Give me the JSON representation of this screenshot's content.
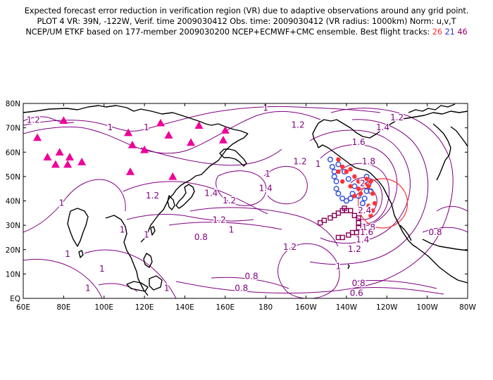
{
  "header": {
    "line1": "Expected forecast error reduction in verification region (VR) due to adaptive observations around any grid point.",
    "line2": "PLOT 4 VR: 39N, -122W, Verif. time 2009030412 Obs. time: 2009030412 (VR radius: 1000km) Norm: u,v,T",
    "line3_prefix": "NCEP/UM ETKF based on 177-member 2009030200 NCEP+ECMWF+CMC ensemble. Best flight tracks:",
    "track_a": "26",
    "track_b": "21",
    "track_c": "46"
  },
  "map": {
    "lon_labels": [
      "60E",
      "80E",
      "100E",
      "120E",
      "140E",
      "160E",
      "180",
      "160W",
      "140W",
      "120W",
      "100W",
      "80W"
    ],
    "lat_labels": [
      "EQ",
      "10N",
      "20N",
      "30N",
      "40N",
      "50N",
      "60N",
      "70N",
      "80N"
    ],
    "contour_labels": [
      {
        "text": "1.2",
        "lon": 65,
        "lat": 72
      },
      {
        "text": "1",
        "lon": 103,
        "lat": 69
      },
      {
        "text": "1",
        "lon": 121,
        "lat": 69
      },
      {
        "text": "1",
        "lon": 180,
        "lat": 77
      },
      {
        "text": "1.2",
        "lon": 196,
        "lat": 70
      },
      {
        "text": "1.2",
        "lon": 197,
        "lat": 55
      },
      {
        "text": "1.4",
        "lon": 238,
        "lat": 69
      },
      {
        "text": "1.2",
        "lon": 245,
        "lat": 73
      },
      {
        "text": "1.6",
        "lon": 226,
        "lat": 63
      },
      {
        "text": "1.8",
        "lon": 231,
        "lat": 55
      },
      {
        "text": "2",
        "lon": 228,
        "lat": 46
      },
      {
        "text": "2.4",
        "lon": 229,
        "lat": 35
      },
      {
        "text": "1.8",
        "lon": 231,
        "lat": 28
      },
      {
        "text": "1.6",
        "lon": 230,
        "lat": 26
      },
      {
        "text": "1.4",
        "lon": 228,
        "lat": 23
      },
      {
        "text": "1.2",
        "lon": 224,
        "lat": 19
      },
      {
        "text": "1",
        "lon": 206,
        "lat": 54
      },
      {
        "text": "1",
        "lon": 181,
        "lat": 50
      },
      {
        "text": "1.4",
        "lon": 180,
        "lat": 44
      },
      {
        "text": "1.4",
        "lon": 153,
        "lat": 42
      },
      {
        "text": "1.2",
        "lon": 162,
        "lat": 39
      },
      {
        "text": "1.2",
        "lon": 124,
        "lat": 41
      },
      {
        "text": "1",
        "lon": 79,
        "lat": 38
      },
      {
        "text": "1.2",
        "lon": 157,
        "lat": 31
      },
      {
        "text": "1",
        "lon": 163,
        "lat": 27
      },
      {
        "text": "0.8",
        "lon": 148,
        "lat": 24
      },
      {
        "text": "1",
        "lon": 121,
        "lat": 25
      },
      {
        "text": "1.2",
        "lon": 192,
        "lat": 20
      },
      {
        "text": "1",
        "lon": 216,
        "lat": 12
      },
      {
        "text": "0.8",
        "lon": 264,
        "lat": 26
      },
      {
        "text": "0.8",
        "lon": 173,
        "lat": 8
      },
      {
        "text": "0.8",
        "lon": 168,
        "lat": 3
      },
      {
        "text": "0.8",
        "lon": 226,
        "lat": 5
      },
      {
        "text": "0.6",
        "lon": 225,
        "lat": 1
      },
      {
        "text": "1",
        "lon": 131,
        "lat": 3
      },
      {
        "text": "1",
        "lon": 99,
        "lat": 11
      },
      {
        "text": "1",
        "lon": 92,
        "lat": 3
      },
      {
        "text": "1",
        "lon": 82,
        "lat": 17
      },
      {
        "text": "1",
        "lon": 109,
        "lat": 27
      }
    ],
    "triangles": [
      {
        "lon": 67,
        "lat": 66
      },
      {
        "lon": 72,
        "lat": 58
      },
      {
        "lon": 76,
        "lat": 55
      },
      {
        "lon": 78,
        "lat": 60
      },
      {
        "lon": 80,
        "lat": 73
      },
      {
        "lon": 82,
        "lat": 55
      },
      {
        "lon": 83,
        "lat": 58
      },
      {
        "lon": 89,
        "lat": 56
      },
      {
        "lon": 112,
        "lat": 68
      },
      {
        "lon": 114,
        "lat": 63
      },
      {
        "lon": 113,
        "lat": 52
      },
      {
        "lon": 120,
        "lat": 61
      },
      {
        "lon": 128,
        "lat": 72
      },
      {
        "lon": 132,
        "lat": 67
      },
      {
        "lon": 134,
        "lat": 50
      },
      {
        "lon": 143,
        "lat": 64
      },
      {
        "lon": 147,
        "lat": 71
      },
      {
        "lon": 159,
        "lat": 65
      },
      {
        "lon": 160,
        "lat": 69
      }
    ],
    "circles": [
      {
        "lon": 212,
        "lat": 57
      },
      {
        "lon": 213,
        "lat": 54
      },
      {
        "lon": 214,
        "lat": 52
      },
      {
        "lon": 214,
        "lat": 50
      },
      {
        "lon": 215,
        "lat": 48
      },
      {
        "lon": 215,
        "lat": 45
      },
      {
        "lon": 216,
        "lat": 43
      },
      {
        "lon": 218,
        "lat": 41
      },
      {
        "lon": 220,
        "lat": 40
      },
      {
        "lon": 222,
        "lat": 41
      },
      {
        "lon": 223,
        "lat": 43
      },
      {
        "lon": 226,
        "lat": 42
      },
      {
        "lon": 228,
        "lat": 39
      },
      {
        "lon": 229,
        "lat": 41
      },
      {
        "lon": 230,
        "lat": 44
      },
      {
        "lon": 231,
        "lat": 47
      },
      {
        "lon": 230,
        "lat": 50
      },
      {
        "lon": 232,
        "lat": 44
      },
      {
        "lon": 216,
        "lat": 55
      },
      {
        "lon": 219,
        "lat": 52
      },
      {
        "lon": 221,
        "lat": 49
      },
      {
        "lon": 224,
        "lat": 46
      }
    ],
    "dots": [
      {
        "lon": 216,
        "lat": 57
      },
      {
        "lon": 216,
        "lat": 52
      },
      {
        "lon": 218,
        "lat": 54
      },
      {
        "lon": 220,
        "lat": 52
      },
      {
        "lon": 218,
        "lat": 48
      },
      {
        "lon": 222,
        "lat": 53
      },
      {
        "lon": 224,
        "lat": 50
      },
      {
        "lon": 222,
        "lat": 46
      },
      {
        "lon": 226,
        "lat": 48
      },
      {
        "lon": 226,
        "lat": 45
      },
      {
        "lon": 224,
        "lat": 42
      },
      {
        "lon": 227,
        "lat": 43
      },
      {
        "lon": 229,
        "lat": 47
      },
      {
        "lon": 230,
        "lat": 49
      },
      {
        "lon": 232,
        "lat": 48
      },
      {
        "lon": 231,
        "lat": 46
      },
      {
        "lon": 233,
        "lat": 43
      },
      {
        "lon": 234,
        "lat": 39
      },
      {
        "lon": 233,
        "lat": 36
      },
      {
        "lon": 232,
        "lat": 34
      },
      {
        "lon": 231,
        "lat": 38
      }
    ],
    "squares": [
      {
        "lon": 207,
        "lat": 31
      },
      {
        "lon": 209,
        "lat": 32
      },
      {
        "lon": 212,
        "lat": 33
      },
      {
        "lon": 214,
        "lat": 34
      },
      {
        "lon": 216,
        "lat": 35
      },
      {
        "lon": 218,
        "lat": 36
      },
      {
        "lon": 220,
        "lat": 36
      },
      {
        "lon": 222,
        "lat": 36
      },
      {
        "lon": 224,
        "lat": 34
      },
      {
        "lon": 226,
        "lat": 33
      },
      {
        "lon": 226,
        "lat": 31
      },
      {
        "lon": 226,
        "lat": 29
      },
      {
        "lon": 225,
        "lat": 27
      },
      {
        "lon": 223,
        "lat": 27
      },
      {
        "lon": 221,
        "lat": 26
      },
      {
        "lon": 218,
        "lat": 25
      },
      {
        "lon": 216,
        "lat": 25
      },
      {
        "lon": 219,
        "lat": 37
      }
    ],
    "verification_center": {
      "lon": 238,
      "lat": 39
    },
    "colors": {
      "contour": "#800080",
      "contour_label": "#800080",
      "triangle": "#ee0099",
      "circle": "#3355dd",
      "dot": "#ff3333",
      "square": "#880055",
      "vr_circle": "#ff3333",
      "coast": "#000000"
    }
  }
}
